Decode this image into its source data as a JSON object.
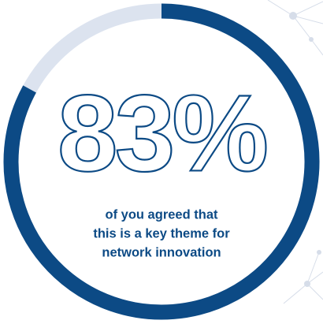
{
  "chart_data": {
    "type": "donut",
    "values": [
      83
    ],
    "value_labels": [
      "83%"
    ],
    "ylim": [
      0,
      100
    ],
    "colors": [
      "#0c4a85",
      "#dce3ef"
    ],
    "caption": [
      "of you agreed that",
      "this is a key theme for",
      "network innovation"
    ]
  }
}
